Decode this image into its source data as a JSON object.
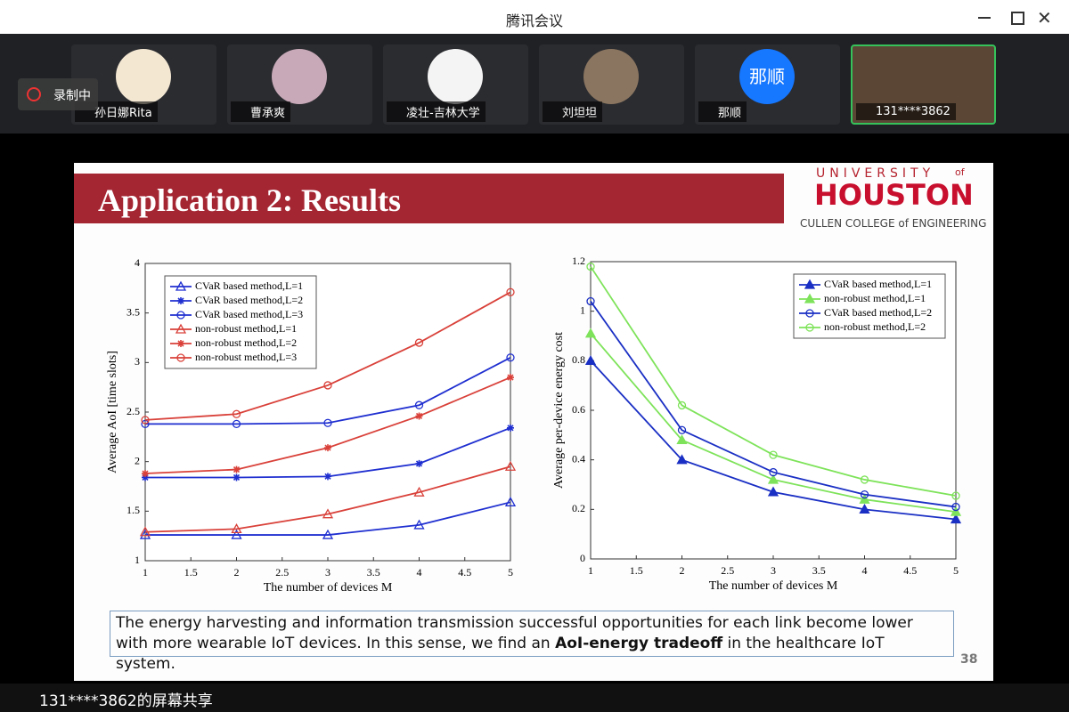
{
  "window": {
    "title": "腾讯会议",
    "recording": "录制中",
    "share_label": "131****3862的屏幕共享"
  },
  "participants": [
    {
      "name": "孙日娜Rita"
    },
    {
      "name": "曹承爽"
    },
    {
      "name": "凌壮-吉林大学"
    },
    {
      "name": "刘坦坦"
    },
    {
      "name": "那顺",
      "avatar": "那顺"
    },
    {
      "name": "131****3862"
    }
  ],
  "slide": {
    "title": "Application 2: Results",
    "logo": {
      "top": "UNIVERSITY",
      "of": "of",
      "name": "HOUSTON",
      "college": "CULLEN COLLEGE of ENGINEERING"
    },
    "caption": {
      "before": "The energy harvesting and information transmission successful opportunities for each link become lower with more wearable IoT devices. In this sense, we find an ",
      "bold": "AoI-energy tradeoff",
      "after": " in the healthcare IoT system."
    },
    "page_number": "38",
    "charts": [
      {
        "type": "line",
        "xlabel": "The number of devices M",
        "ylabel": "Average AoI [time slots]",
        "x": [
          1,
          2,
          3,
          4,
          5
        ],
        "xlim": [
          1,
          5
        ],
        "xticks": [
          1,
          1.5,
          2,
          2.5,
          3,
          3.5,
          4,
          4.5,
          5
        ],
        "ylim": [
          1,
          4
        ],
        "yticks": [
          1,
          1.5,
          2,
          2.5,
          3,
          3.5,
          4
        ],
        "legend": "upper left",
        "series": [
          {
            "name": "CVaR based method,L=1",
            "color": "#1f2fd0",
            "marker": "triangle",
            "values": [
              1.26,
              1.26,
              1.26,
              1.36,
              1.59
            ]
          },
          {
            "name": "CVaR based method,L=2",
            "color": "#1f2fd0",
            "marker": "star",
            "values": [
              1.84,
              1.84,
              1.85,
              1.98,
              2.34
            ]
          },
          {
            "name": "CVaR based method,L=3",
            "color": "#1f2fd0",
            "marker": "circle",
            "values": [
              2.38,
              2.38,
              2.39,
              2.57,
              3.05
            ]
          },
          {
            "name": "non-robust method,L=1",
            "color": "#d9413a",
            "marker": "triangle",
            "values": [
              1.29,
              1.32,
              1.47,
              1.69,
              1.95
            ]
          },
          {
            "name": "non-robust method,L=2",
            "color": "#d9413a",
            "marker": "star",
            "values": [
              1.88,
              1.92,
              2.14,
              2.46,
              2.85
            ]
          },
          {
            "name": "non-robust method,L=3",
            "color": "#d9413a",
            "marker": "circle",
            "values": [
              2.42,
              2.48,
              2.77,
              3.2,
              3.71
            ]
          }
        ]
      },
      {
        "type": "line",
        "xlabel": "The number of devices M",
        "ylabel": "Average per-device energy cost",
        "x": [
          1,
          2,
          3,
          4,
          5
        ],
        "xlim": [
          1,
          5
        ],
        "xticks": [
          1,
          1.5,
          2,
          2.5,
          3,
          3.5,
          4,
          4.5,
          5
        ],
        "ylim": [
          0,
          1.2
        ],
        "yticks": [
          0,
          0.2,
          0.4,
          0.6,
          0.8,
          1,
          1.2
        ],
        "legend": "upper right",
        "series": [
          {
            "name": "CVaR based method,L=1",
            "color": "#1a2fc4",
            "marker": "triangle",
            "filled": true,
            "values": [
              0.8,
              0.4,
              0.27,
              0.2,
              0.16
            ]
          },
          {
            "name": "non-robust method,L=1",
            "color": "#7ee35a",
            "marker": "triangle",
            "filled": true,
            "values": [
              0.91,
              0.48,
              0.32,
              0.24,
              0.19
            ]
          },
          {
            "name": "CVaR based method,L=2",
            "color": "#1a2fc4",
            "marker": "circle",
            "values": [
              1.04,
              0.52,
              0.35,
              0.26,
              0.21
            ]
          },
          {
            "name": "non-robust method,L=2",
            "color": "#7ee35a",
            "marker": "circle",
            "values": [
              1.18,
              0.62,
              0.42,
              0.32,
              0.255
            ]
          }
        ]
      }
    ]
  }
}
